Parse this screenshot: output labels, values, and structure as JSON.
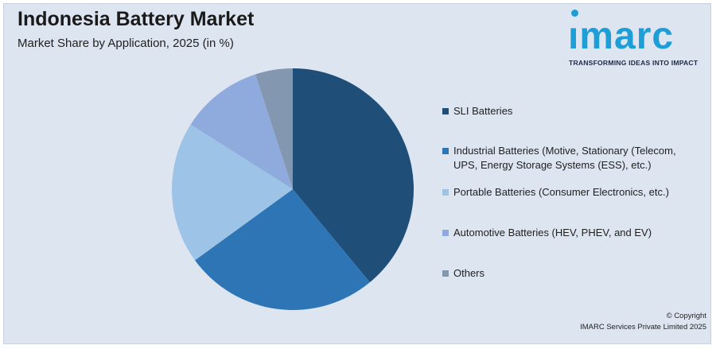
{
  "header": {
    "title": "Indonesia Battery Market",
    "subtitle": "Market Share by Application, 2025 (in %)"
  },
  "logo": {
    "word": "ımarc",
    "tagline": "TRANSFORMING IDEAS INTO IMPACT",
    "color": "#1e9ed6"
  },
  "chart_data": {
    "type": "pie",
    "title": "Indonesia Battery Market",
    "subtitle": "Market Share by Application, 2025 (in %)",
    "categories": [
      "SLI Batteries",
      "Industrial Batteries (Motive, Stationary (Telecom, UPS, Energy Storage Systems (ESS), etc.)",
      "Portable Batteries (Consumer Electronics, etc.)",
      "Automotive Batteries (HEV, PHEV, and EV)",
      "Others"
    ],
    "values": [
      39,
      26,
      19,
      11,
      5
    ],
    "colors": [
      "#1f4e79",
      "#2e75b6",
      "#9dc3e6",
      "#8faadc",
      "#8497b0"
    ],
    "start_angle_deg": 0,
    "direction": "clockwise",
    "legend_position": "right"
  },
  "footer": {
    "copyright_line1": "© Copyright",
    "copyright_line2": "IMARC Services Private Limited 2025"
  }
}
